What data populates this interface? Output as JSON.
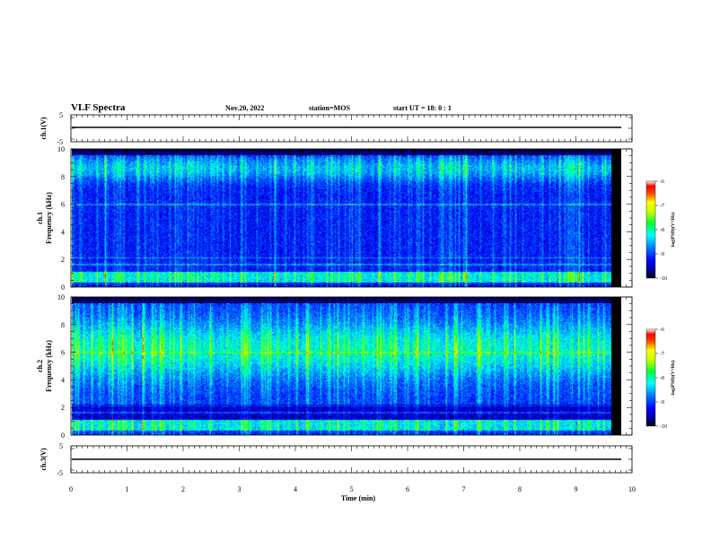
{
  "header": {
    "title": "VLF Spectra",
    "date": "Nov.20, 2022",
    "station": "station=MOS",
    "start": "start  UT =   18: 0  : 1"
  },
  "chart_data": [
    {
      "type": "line",
      "name": "ch1-waveform",
      "ylabel": "ch.1(V)",
      "ylim": [
        -5,
        5
      ],
      "yticks": [
        "5",
        "-5"
      ],
      "xlim": [
        0,
        10
      ],
      "x_extent": [
        0,
        9.83
      ],
      "baseline": 0
    },
    {
      "type": "heatmap",
      "name": "ch1-spectrogram",
      "ylabel_top": "ch.1",
      "ylabel": "Frequency (kHz)",
      "ylim": [
        0,
        10
      ],
      "yticks": [
        "0",
        "2",
        "4",
        "6",
        "8",
        "10"
      ],
      "xlim": [
        0,
        10
      ],
      "x_extent": [
        0,
        9.83
      ],
      "colorbar": {
        "label": "log(PSD)(V²/Hz)",
        "range": [
          -10,
          -6
        ],
        "ticks": [
          "-6",
          "-7",
          "-8",
          "-9",
          "-10"
        ]
      }
    },
    {
      "type": "heatmap",
      "name": "ch2-spectrogram",
      "ylabel_top": "ch.2",
      "ylabel": "Frequency (kHz)",
      "ylim": [
        0,
        10
      ],
      "yticks": [
        "0",
        "2",
        "4",
        "6",
        "8",
        "10"
      ],
      "xlim": [
        0,
        10
      ],
      "x_extent": [
        0,
        9.83
      ],
      "colorbar": {
        "label": "log(PSD)(V²/Hz)",
        "range": [
          -10,
          -6
        ],
        "ticks": [
          "-6",
          "-7",
          "-8",
          "-9",
          "-10"
        ]
      }
    },
    {
      "type": "line",
      "name": "ch3-waveform",
      "ylabel": "ch.3(V)",
      "ylim": [
        -5,
        5
      ],
      "yticks": [
        "5",
        "-5"
      ],
      "xlim": [
        0,
        10
      ],
      "x_extent": [
        0,
        9.83
      ],
      "baseline": 0
    }
  ],
  "xaxis": {
    "label": "Time (min)",
    "ticks": [
      "0",
      "1",
      "2",
      "3",
      "4",
      "5",
      "6",
      "7",
      "8",
      "9",
      "10"
    ]
  }
}
